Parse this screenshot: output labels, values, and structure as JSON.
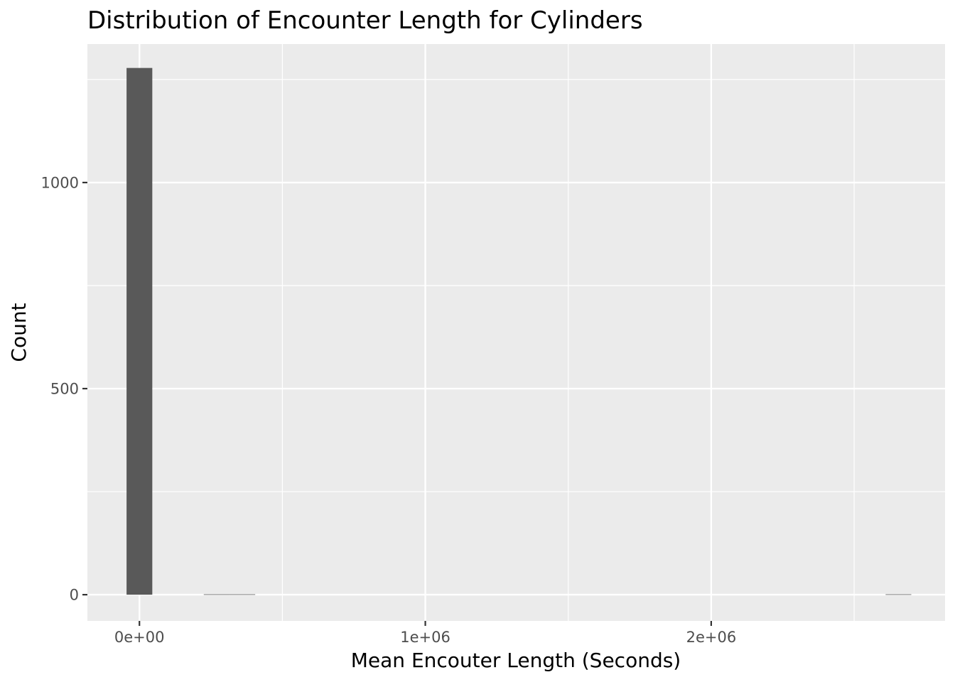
{
  "chart_data": {
    "type": "bar",
    "title": "Distribution of Encounter Length for Cylinders",
    "xlabel": "Mean Encouter Length (Seconds)",
    "ylabel": "Count",
    "x_ticks": [
      {
        "value": 0,
        "label": "0e+00"
      },
      {
        "value": 1000000,
        "label": "1e+06"
      },
      {
        "value": 2000000,
        "label": "2e+06"
      }
    ],
    "x_minor_ticks": [
      500000,
      1500000,
      2500000
    ],
    "y_ticks": [
      {
        "value": 0,
        "label": "0"
      },
      {
        "value": 500,
        "label": "500"
      },
      {
        "value": 1000,
        "label": "1000"
      }
    ],
    "y_minor_ticks": [
      250,
      750,
      1250
    ],
    "xlim": [
      -182000,
      2818000
    ],
    "ylim": [
      -63.6,
      1336
    ],
    "bars": [
      {
        "x_start": -45000,
        "x_end": 45000,
        "count": 1278
      },
      {
        "x_start": 225000,
        "x_end": 315000,
        "count": 1
      },
      {
        "x_start": 315000,
        "x_end": 405000,
        "count": 1
      },
      {
        "x_start": 2610000,
        "x_end": 2700000,
        "count": 1
      }
    ],
    "colors": {
      "panel": "#ebebeb",
      "grid": "#ffffff",
      "bar": "#595959",
      "tick": "#333333"
    },
    "grid": true
  }
}
